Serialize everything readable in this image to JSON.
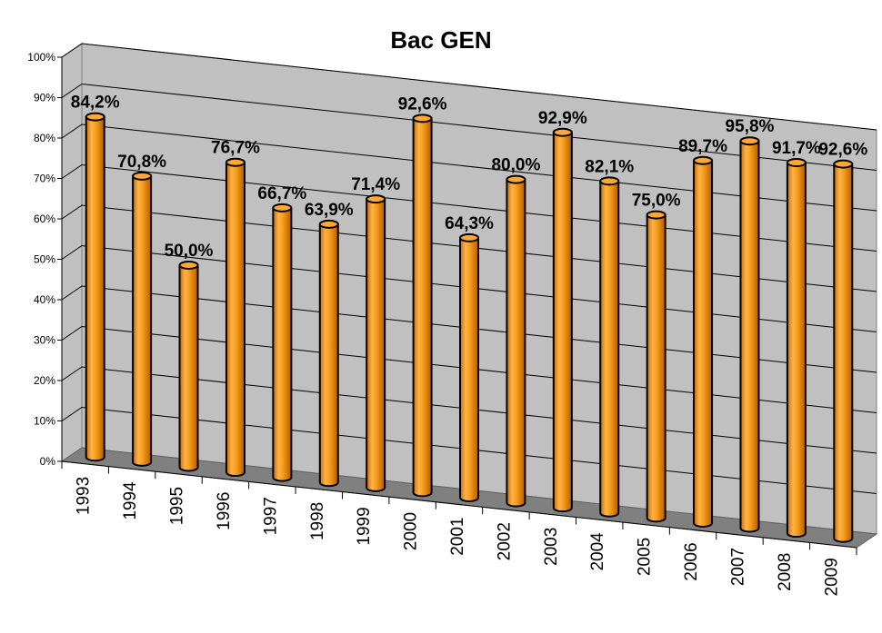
{
  "chart_data": {
    "type": "bar",
    "title": "Bac GEN",
    "xlabel": "",
    "ylabel": "",
    "categories": [
      "1993",
      "1994",
      "1995",
      "1996",
      "1997",
      "1998",
      "1999",
      "2000",
      "2001",
      "2002",
      "2003",
      "2004",
      "2005",
      "2006",
      "2007",
      "2008",
      "2009"
    ],
    "values": [
      84.2,
      70.8,
      50.0,
      76.7,
      66.7,
      63.9,
      71.4,
      92.6,
      64.3,
      80.0,
      92.9,
      82.1,
      75.0,
      89.7,
      95.8,
      91.7,
      92.6
    ],
    "data_labels": [
      "84,2%",
      "70,8%",
      "50,0%",
      "76,7%",
      "66,7%",
      "63,9%",
      "71,4%",
      "92,6%",
      "64,3%",
      "80,0%",
      "92,9%",
      "82,1%",
      "75,0%",
      "89,7%",
      "95,8%",
      "91,7%",
      "92,6%"
    ],
    "ylim": [
      0,
      100
    ],
    "yticks": [
      "0%",
      "10%",
      "20%",
      "30%",
      "40%",
      "50%",
      "60%",
      "70%",
      "80%",
      "90%",
      "100%"
    ],
    "grid": true,
    "legend": "none",
    "style": "3d-cylinder",
    "colors": {
      "bar": "#f59c1a",
      "wall": "#c0c0c0",
      "floor": "#808080"
    }
  }
}
